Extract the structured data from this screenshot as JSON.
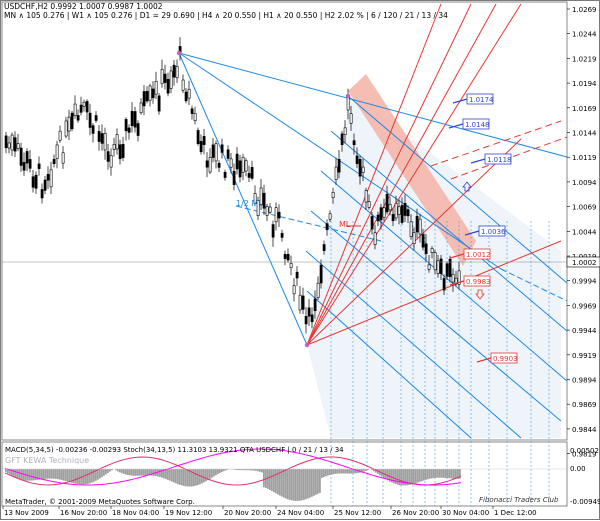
{
  "header": {
    "line1": "USDCHF,H2  0.9992 1.0007 0.9987 1.0002",
    "line2": "MN ∧ 105   0.276  |  W1 ∧ 105   0.276  |  D1 = 29   0.690  |  H4 ∧ 20   0.550  |  H1 ∧ 20   0.550  |  H2  2.02 %  |  6 / 120 / 21 / 13 / 34"
  },
  "price_axis": {
    "labels": [
      "1.0269",
      "1.0244",
      "1.0219",
      "1.0194",
      "1.0169",
      "1.0144",
      "1.0119",
      "1.0094",
      "1.0069",
      "1.0044",
      "1.0019",
      "0.9994",
      "0.9969",
      "0.9944",
      "0.9919",
      "0.9894",
      "0.9869",
      "0.9844",
      "0.9819"
    ],
    "current": "1.0002"
  },
  "time_axis": {
    "labels": [
      "13 Nov 2009",
      "16 Nov 20:00",
      "18 Nov 04:00",
      "19 Nov 12:00",
      "20 Nov 20:00",
      "24 Nov 04:00",
      "25 Nov 12:00",
      "26 Nov 20:00",
      "30 Nov 04:00",
      "1 Dec 12:00"
    ]
  },
  "annotations": {
    "half_ml": "1/2 ML",
    "ml": "ML",
    "boxes": [
      "1.0174",
      "1.0148",
      "1.0118",
      "1.0036",
      "1.0012",
      "0.9983",
      "0.9903"
    ]
  },
  "sub_window": {
    "title": "MACD(5,34,5) -0.00236 -0.00293   Stoch(34,13,5) 11.3103 13.9321   QTA USDCHF  |  0 / 21 / 13 / 34",
    "faded": "GFT   KEWA Technique",
    "right_labels": [
      "0.00502",
      "0.00",
      "-0.00949"
    ],
    "copyright": "MetaTrader, © 2001-2009 MetaQuotes Software Corp.",
    "club": "Fibonacci Traders Club"
  },
  "colors": {
    "background": "#ffffff",
    "channel_blue": "#1e88e5",
    "fib_red": "#e53935",
    "band_fill": "#f4b1a4",
    "macd_hist": "#9e9e9e",
    "macd_signal": "#e0306c",
    "stoch_main": "#ff00ff"
  }
}
